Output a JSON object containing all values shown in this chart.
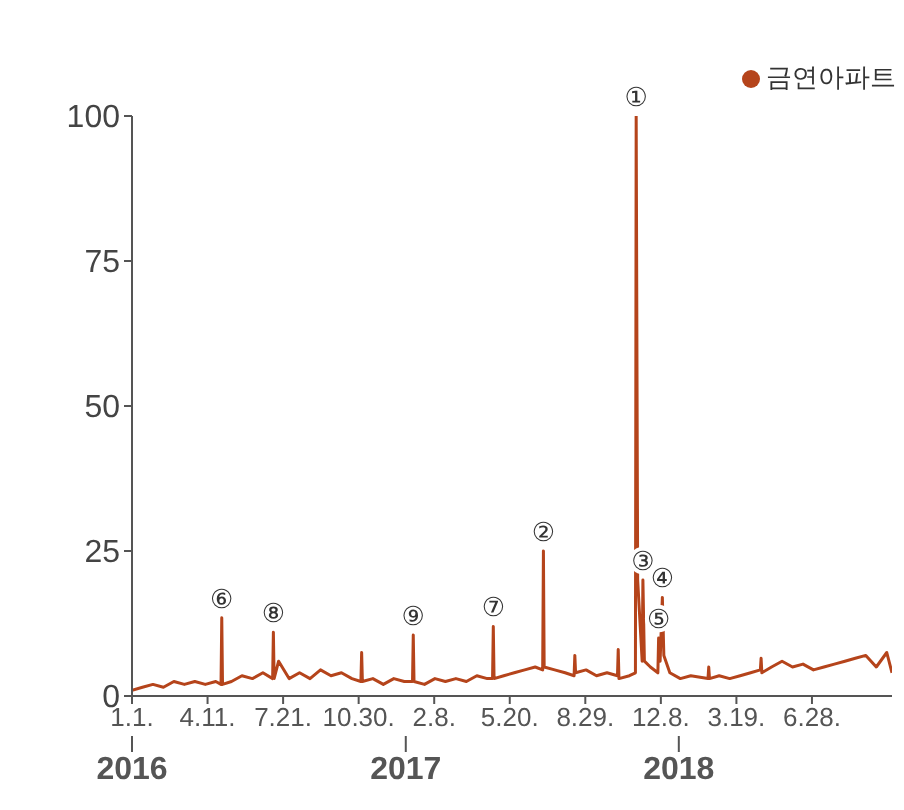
{
  "chart_data": {
    "type": "line",
    "legend": "top right",
    "marker": "none",
    "line_style": "solid",
    "xlim": [
      "2016-01-01",
      "2018-10-13"
    ],
    "xticks": [
      {
        "value": "2016-01-01",
        "label": "1.1."
      },
      {
        "value": "2016-04-11",
        "label": "4.11."
      },
      {
        "value": "2016-07-21",
        "label": "7.21."
      },
      {
        "value": "2016-10-30",
        "label": "10.30."
      },
      {
        "value": "2017-02-08",
        "label": "2.8."
      },
      {
        "value": "2017-05-20",
        "label": "5.20."
      },
      {
        "value": "2017-08-29",
        "label": "8.29."
      },
      {
        "value": "2017-12-08",
        "label": "12.8."
      },
      {
        "value": "2018-03-19",
        "label": "3.19."
      },
      {
        "value": "2018-06-28",
        "label": "6.28."
      }
    ],
    "x2lim": [
      "2016-01-01",
      "2018-10-13"
    ],
    "x2ticks": [
      {
        "value": "2016-01-01",
        "label": "2016"
      },
      {
        "value": "2017-01-01",
        "label": "2017"
      },
      {
        "value": "2018-01-01",
        "label": "2018"
      }
    ],
    "ylim": [
      0,
      100
    ],
    "yticks": [
      0,
      25,
      50,
      75,
      100
    ],
    "x": [
      "2016-01-01",
      "2016-01-15",
      "2016-01-29",
      "2016-02-12",
      "2016-02-26",
      "2016-03-11",
      "2016-03-25",
      "2016-04-08",
      "2016-04-22",
      "2016-04-29",
      "2016-04-30",
      "2016-05-01",
      "2016-05-13",
      "2016-05-27",
      "2016-06-10",
      "2016-06-24",
      "2016-07-07",
      "2016-07-08",
      "2016-07-09",
      "2016-07-15",
      "2016-07-29",
      "2016-08-12",
      "2016-08-26",
      "2016-09-09",
      "2016-09-23",
      "2016-10-07",
      "2016-10-21",
      "2016-11-02",
      "2016-11-03",
      "2016-11-04",
      "2016-11-18",
      "2016-12-02",
      "2016-12-16",
      "2016-12-30",
      "2017-01-10",
      "2017-01-11",
      "2017-01-12",
      "2017-01-26",
      "2017-02-09",
      "2017-02-23",
      "2017-03-09",
      "2017-03-23",
      "2017-04-06",
      "2017-04-20",
      "2017-04-27",
      "2017-04-28",
      "2017-04-29",
      "2017-05-12",
      "2017-05-26",
      "2017-06-09",
      "2017-06-23",
      "2017-07-03",
      "2017-07-04",
      "2017-07-05",
      "2017-07-19",
      "2017-08-02",
      "2017-08-14",
      "2017-08-15",
      "2017-08-16",
      "2017-08-30",
      "2017-09-13",
      "2017-09-27",
      "2017-10-11",
      "2017-10-12",
      "2017-10-13",
      "2017-10-27",
      "2017-11-04",
      "2017-11-05",
      "2017-11-07",
      "2017-11-13",
      "2017-11-14",
      "2017-11-16",
      "2017-11-24",
      "2017-12-04",
      "2017-12-05",
      "2017-12-07",
      "2017-12-10",
      "2017-12-12",
      "2017-12-20",
      "2018-01-03",
      "2018-01-17",
      "2018-02-09",
      "2018-02-10",
      "2018-02-11",
      "2018-02-24",
      "2018-03-10",
      "2018-03-24",
      "2018-04-07",
      "2018-04-20",
      "2018-04-21",
      "2018-04-22",
      "2018-05-05",
      "2018-05-19",
      "2018-06-02",
      "2018-06-16",
      "2018-06-30",
      "2018-07-14",
      "2018-07-28",
      "2018-08-11",
      "2018-08-25",
      "2018-09-08",
      "2018-09-22",
      "2018-10-06",
      "2018-10-13"
    ],
    "series": [
      {
        "name": "금연아파트",
        "color": "#b5441b",
        "values": [
          1,
          1.5,
          2,
          1.5,
          2.5,
          2,
          2.5,
          2,
          2.5,
          2,
          13.5,
          2,
          2.5,
          3.5,
          3,
          4,
          3,
          11,
          3,
          6,
          3,
          4,
          3,
          4.5,
          3.5,
          4,
          3,
          2.5,
          7.5,
          2.5,
          3,
          2,
          3,
          2.5,
          2.5,
          10.5,
          2.5,
          2,
          3,
          2.5,
          3,
          2.5,
          3.5,
          3,
          3,
          12,
          3,
          3.5,
          4,
          4.5,
          5,
          4.5,
          25,
          5,
          4.5,
          4,
          3.5,
          7,
          4,
          4.5,
          3.5,
          4,
          3.5,
          8,
          3,
          3.5,
          4,
          100,
          20,
          6,
          20,
          6,
          5,
          4,
          10,
          6,
          17,
          7,
          4,
          3,
          3.5,
          3,
          5,
          3,
          3.5,
          3,
          3.5,
          4,
          4.5,
          6.5,
          4,
          5,
          6,
          5,
          5.5,
          4.5,
          5,
          5.5,
          6,
          6.5,
          7,
          5,
          7.5,
          4
        ]
      }
    ],
    "annotations": [
      {
        "text": "①",
        "x": "2017-11-05",
        "y": 100
      },
      {
        "text": "②",
        "x": "2017-07-04",
        "y": 25
      },
      {
        "text": "③",
        "x": "2017-11-14",
        "y": 20
      },
      {
        "text": "④",
        "x": "2017-12-10",
        "y": 17
      },
      {
        "text": "⑤",
        "x": "2017-12-05",
        "y": 10
      },
      {
        "text": "⑥",
        "x": "2016-04-30",
        "y": 13.5
      },
      {
        "text": "⑦",
        "x": "2017-04-28",
        "y": 12
      },
      {
        "text": "⑧",
        "x": "2016-07-08",
        "y": 11
      },
      {
        "text": "⑨",
        "x": "2017-01-11",
        "y": 10.5
      }
    ]
  }
}
